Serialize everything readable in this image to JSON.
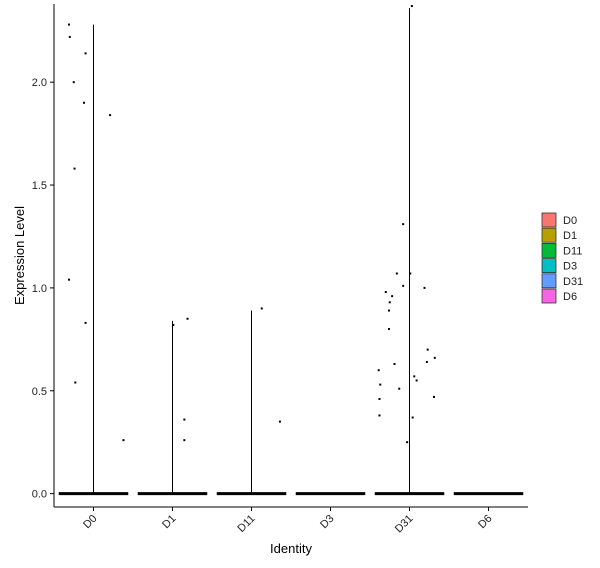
{
  "chart_data": {
    "type": "violin",
    "title": "",
    "xlabel": "Identity",
    "ylabel": "Expression Level",
    "categories": [
      "D0",
      "D1",
      "D11",
      "D3",
      "D31",
      "D6"
    ],
    "y_ticks": [
      0.0,
      0.5,
      1.0,
      1.5,
      2.0
    ],
    "y_tick_labels": [
      "0.0",
      "0.5",
      "1.0",
      "1.5",
      "2.0"
    ],
    "ylim": [
      -0.065,
      2.38
    ],
    "grid": false,
    "legend_position": "right",
    "legend": [
      {
        "label": "D0",
        "color": "#F8766D"
      },
      {
        "label": "D1",
        "color": "#B79F00"
      },
      {
        "label": "D11",
        "color": "#00BA38"
      },
      {
        "label": "D3",
        "color": "#00BFC4"
      },
      {
        "label": "D31",
        "color": "#619CFF"
      },
      {
        "label": "D6",
        "color": "#F564E3"
      }
    ],
    "violin_max": [
      2.28,
      0.84,
      0.89,
      0.0,
      2.36,
      0.0
    ],
    "points": [
      {
        "group": "D0",
        "jitter": -0.31,
        "y": 2.28
      },
      {
        "group": "D0",
        "jitter": -0.3,
        "y": 2.22
      },
      {
        "group": "D0",
        "jitter": -0.1,
        "y": 2.14
      },
      {
        "group": "D0",
        "jitter": -0.25,
        "y": 2.0
      },
      {
        "group": "D0",
        "jitter": -0.12,
        "y": 1.9
      },
      {
        "group": "D0",
        "jitter": 0.21,
        "y": 1.84
      },
      {
        "group": "D0",
        "jitter": -0.24,
        "y": 1.58
      },
      {
        "group": "D0",
        "jitter": -0.31,
        "y": 1.04
      },
      {
        "group": "D0",
        "jitter": -0.1,
        "y": 0.83
      },
      {
        "group": "D0",
        "jitter": -0.23,
        "y": 0.54
      },
      {
        "group": "D0",
        "jitter": 0.38,
        "y": 0.26
      },
      {
        "group": "D1",
        "jitter": 0.19,
        "y": 0.85
      },
      {
        "group": "D1",
        "jitter": 0.01,
        "y": 0.82
      },
      {
        "group": "D1",
        "jitter": 0.15,
        "y": 0.36
      },
      {
        "group": "D1",
        "jitter": 0.15,
        "y": 0.26
      },
      {
        "group": "D11",
        "jitter": 0.13,
        "y": 0.9
      },
      {
        "group": "D11",
        "jitter": 0.36,
        "y": 0.35
      },
      {
        "group": "D31",
        "jitter": 0.03,
        "y": 2.37
      },
      {
        "group": "D31",
        "jitter": -0.08,
        "y": 1.31
      },
      {
        "group": "D31",
        "jitter": -0.16,
        "y": 1.07
      },
      {
        "group": "D31",
        "jitter": 0.01,
        "y": 1.07
      },
      {
        "group": "D31",
        "jitter": -0.08,
        "y": 1.01
      },
      {
        "group": "D31",
        "jitter": 0.19,
        "y": 1.0
      },
      {
        "group": "D31",
        "jitter": -0.3,
        "y": 0.98
      },
      {
        "group": "D31",
        "jitter": -0.22,
        "y": 0.96
      },
      {
        "group": "D31",
        "jitter": -0.25,
        "y": 0.93
      },
      {
        "group": "D31",
        "jitter": -0.26,
        "y": 0.89
      },
      {
        "group": "D31",
        "jitter": -0.26,
        "y": 0.8
      },
      {
        "group": "D31",
        "jitter": 0.23,
        "y": 0.7
      },
      {
        "group": "D31",
        "jitter": 0.32,
        "y": 0.66
      },
      {
        "group": "D31",
        "jitter": 0.22,
        "y": 0.64
      },
      {
        "group": "D31",
        "jitter": -0.19,
        "y": 0.63
      },
      {
        "group": "D31",
        "jitter": -0.39,
        "y": 0.6
      },
      {
        "group": "D31",
        "jitter": 0.06,
        "y": 0.57
      },
      {
        "group": "D31",
        "jitter": 0.09,
        "y": 0.55
      },
      {
        "group": "D31",
        "jitter": -0.37,
        "y": 0.53
      },
      {
        "group": "D31",
        "jitter": -0.13,
        "y": 0.51
      },
      {
        "group": "D31",
        "jitter": 0.31,
        "y": 0.47
      },
      {
        "group": "D31",
        "jitter": -0.38,
        "y": 0.46
      },
      {
        "group": "D31",
        "jitter": -0.38,
        "y": 0.38
      },
      {
        "group": "D31",
        "jitter": 0.04,
        "y": 0.37
      },
      {
        "group": "D31",
        "jitter": -0.03,
        "y": 0.25
      }
    ]
  }
}
